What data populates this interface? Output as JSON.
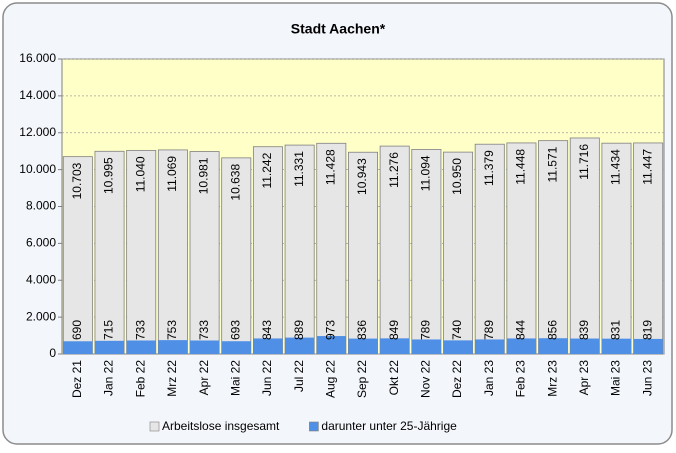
{
  "chart_data": {
    "type": "overlap-bar",
    "title": "Stadt Aachen*",
    "categories": [
      "Dez 21",
      "Jan 22",
      "Feb 22",
      "Mrz 22",
      "Apr 22",
      "Mai 22",
      "Jun 22",
      "Jul 22",
      "Aug 22",
      "Sep 22",
      "Okt 22",
      "Nov 22",
      "Dez 22",
      "Jan 23",
      "Feb 23",
      "Mrz 23",
      "Apr 23",
      "Mai 23",
      "Jun 23"
    ],
    "series": [
      {
        "name": "Arbeitslose insgesamt",
        "color": "#e6e6e6",
        "values": [
          10703,
          10995,
          11040,
          11069,
          10981,
          10638,
          11242,
          11331,
          11428,
          10943,
          11276,
          11094,
          10950,
          11379,
          11448,
          11571,
          11716,
          11434,
          11447
        ],
        "value_labels": [
          "10.703",
          "10.995",
          "11.040",
          "11.069",
          "10.981",
          "10.638",
          "11.242",
          "11.331",
          "11.428",
          "10.943",
          "11.276",
          "11.094",
          "10.950",
          "11.379",
          "11.448",
          "11.571",
          "11.716",
          "11.434",
          "11.447"
        ]
      },
      {
        "name": "darunter unter 25-Jährige",
        "color": "#4f8fe6",
        "values": [
          690,
          715,
          733,
          753,
          733,
          693,
          843,
          889,
          973,
          836,
          849,
          789,
          740,
          789,
          844,
          856,
          839,
          831,
          819
        ]
      }
    ],
    "ylim": [
      0,
      16000
    ],
    "yticks": [
      0,
      {
        "value": 2000,
        "label": "2.000"
      },
      {
        "value": 4000,
        "label": "4.000"
      },
      {
        "value": 6000,
        "label": "6.000"
      },
      {
        "value": 8000,
        "label": "8.000"
      },
      {
        "value": 10000,
        "label": "10.000"
      },
      {
        "value": 12000,
        "label": "12.000"
      },
      {
        "value": 14000,
        "label": "14.000"
      },
      {
        "value": 16000,
        "label": "16.000"
      }
    ],
    "plot_background": "#ffffc8",
    "grid": true
  }
}
